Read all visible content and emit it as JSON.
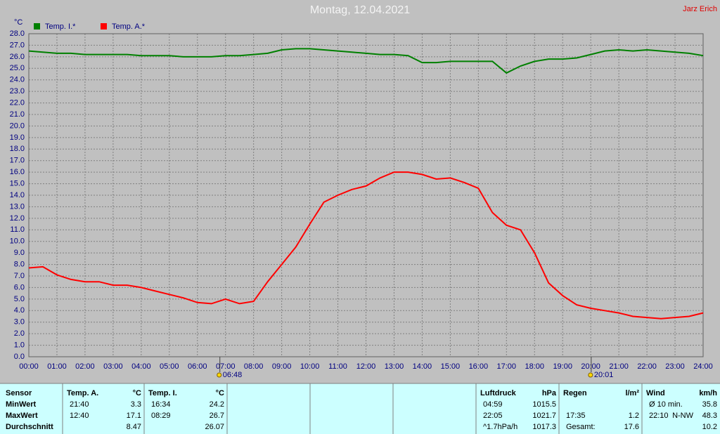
{
  "chart_data": {
    "type": "line",
    "title": "Montag, 12.04.2021",
    "author": "Jarz Erich",
    "y_label": "°C",
    "x": [
      0,
      0.5,
      1,
      1.5,
      2,
      2.5,
      3,
      3.5,
      4,
      4.5,
      5,
      5.5,
      6,
      6.5,
      7,
      7.5,
      8,
      8.5,
      9,
      9.5,
      10,
      10.5,
      11,
      11.5,
      12,
      12.5,
      13,
      13.5,
      14,
      14.5,
      15,
      15.5,
      16,
      16.5,
      17,
      17.5,
      18,
      18.5,
      19,
      19.5,
      20,
      20.5,
      21,
      21.5,
      22,
      22.5,
      23,
      23.5,
      24
    ],
    "series": [
      {
        "name": "Temp. I.*",
        "color": "#008000",
        "values": [
          26.5,
          26.4,
          26.3,
          26.3,
          26.2,
          26.2,
          26.2,
          26.2,
          26.1,
          26.1,
          26.1,
          26.0,
          26.0,
          26.0,
          26.1,
          26.1,
          26.2,
          26.3,
          26.6,
          26.7,
          26.7,
          26.6,
          26.5,
          26.4,
          26.3,
          26.2,
          26.2,
          26.1,
          25.5,
          25.5,
          25.6,
          25.6,
          25.6,
          25.6,
          24.6,
          25.2,
          25.6,
          25.8,
          25.8,
          25.9,
          26.2,
          26.5,
          26.6,
          26.5,
          26.6,
          26.5,
          26.4,
          26.3,
          26.1
        ]
      },
      {
        "name": "Temp. A.*",
        "color": "#ff0000",
        "values": [
          7.7,
          7.8,
          7.1,
          6.7,
          6.5,
          6.5,
          6.2,
          6.2,
          6.0,
          5.7,
          5.4,
          5.1,
          4.7,
          4.6,
          5.0,
          4.6,
          4.8,
          6.5,
          8.0,
          9.5,
          11.5,
          13.4,
          14.0,
          14.5,
          14.8,
          15.5,
          16.0,
          16.0,
          15.8,
          15.4,
          15.5,
          15.1,
          14.6,
          12.5,
          11.4,
          11.0,
          9.0,
          6.4,
          5.3,
          4.5,
          4.2,
          4.0,
          3.8,
          3.5,
          3.4,
          3.3,
          3.4,
          3.5,
          3.8
        ]
      }
    ],
    "xlim": [
      0,
      24
    ],
    "xticks": [
      {
        "value": 0,
        "label": "00:00"
      },
      {
        "value": 1,
        "label": "01:00"
      },
      {
        "value": 2,
        "label": "02:00"
      },
      {
        "value": 3,
        "label": "03:00"
      },
      {
        "value": 4,
        "label": "04:00"
      },
      {
        "value": 5,
        "label": "05:00"
      },
      {
        "value": 6,
        "label": "06:00"
      },
      {
        "value": 7,
        "label": "07:00"
      },
      {
        "value": 8,
        "label": "08:00"
      },
      {
        "value": 9,
        "label": "09:00"
      },
      {
        "value": 10,
        "label": "10:00"
      },
      {
        "value": 11,
        "label": "11:00"
      },
      {
        "value": 12,
        "label": "12:00"
      },
      {
        "value": 13,
        "label": "13:00"
      },
      {
        "value": 14,
        "label": "14:00"
      },
      {
        "value": 15,
        "label": "15:00"
      },
      {
        "value": 16,
        "label": "16:00"
      },
      {
        "value": 17,
        "label": "17:00"
      },
      {
        "value": 18,
        "label": "18:00"
      },
      {
        "value": 19,
        "label": "19:00"
      },
      {
        "value": 20,
        "label": "20:00"
      },
      {
        "value": 21,
        "label": "21:00"
      },
      {
        "value": 22,
        "label": "22:00"
      },
      {
        "value": 23,
        "label": "23:00"
      },
      {
        "value": 24,
        "label": "24:00"
      }
    ],
    "ylim": [
      0,
      28
    ],
    "yticks": [
      {
        "value": 0,
        "label": "0.0"
      },
      {
        "value": 1,
        "label": "1.0"
      },
      {
        "value": 2,
        "label": "2.0"
      },
      {
        "value": 3,
        "label": "3.0"
      },
      {
        "value": 4,
        "label": "4.0"
      },
      {
        "value": 5,
        "label": "5.0"
      },
      {
        "value": 6,
        "label": "6.0"
      },
      {
        "value": 7,
        "label": "7.0"
      },
      {
        "value": 8,
        "label": "8.0"
      },
      {
        "value": 9,
        "label": "9.0"
      },
      {
        "value": 10,
        "label": "10.0"
      },
      {
        "value": 11,
        "label": "11.0"
      },
      {
        "value": 12,
        "label": "12.0"
      },
      {
        "value": 13,
        "label": "13.0"
      },
      {
        "value": 14,
        "label": "14.0"
      },
      {
        "value": 15,
        "label": "15.0"
      },
      {
        "value": 16,
        "label": "16.0"
      },
      {
        "value": 17,
        "label": "17.0"
      },
      {
        "value": 18,
        "label": "18.0"
      },
      {
        "value": 19,
        "label": "19.0"
      },
      {
        "value": 20,
        "label": "20.0"
      },
      {
        "value": 21,
        "label": "21.0"
      },
      {
        "value": 22,
        "label": "22.0"
      },
      {
        "value": 23,
        "label": "23.0"
      },
      {
        "value": 24,
        "label": "24.0"
      },
      {
        "value": 25,
        "label": "25.0"
      },
      {
        "value": 26,
        "label": "26.0"
      },
      {
        "value": 27,
        "label": "27.0"
      },
      {
        "value": 28,
        "label": "28.0"
      }
    ],
    "grid": true,
    "annotations": [
      {
        "x": 6.8,
        "label": "06:48"
      },
      {
        "x": 20.0167,
        "label": "20:01"
      }
    ]
  },
  "table": {
    "row_labels": [
      "Sensor",
      "MinWert",
      "MaxWert",
      "Durchschnitt"
    ],
    "blocks": [
      {
        "title": "Temp. A.",
        "unit": "°C",
        "rows": [
          [
            "21:40",
            "3.3"
          ],
          [
            "12:40",
            "17.1"
          ],
          [
            "8.47"
          ]
        ]
      },
      {
        "title": "Temp. I.",
        "unit": "°C",
        "rows": [
          [
            "16:34",
            "24.2"
          ],
          [
            "08:29",
            "26.7"
          ],
          [
            "26.07"
          ]
        ]
      },
      {
        "title": "Luftdruck",
        "unit": "hPa",
        "rows": [
          [
            "04:59",
            "1015.5"
          ],
          [
            "22:05",
            "1021.7"
          ],
          [
            "^1.7hPa/h",
            "1017.3"
          ]
        ]
      },
      {
        "title": "Regen",
        "unit": "l/m²",
        "rows": [
          [],
          [
            "17:35",
            "1.2"
          ],
          [
            "Gesamt:",
            "17.6"
          ]
        ]
      },
      {
        "title": "Wind",
        "unit": "km/h",
        "rows": [
          [
            "Ø 10 min.",
            "35.8"
          ],
          [
            "22:10",
            "N-NW",
            "48.3"
          ],
          [
            "10.2"
          ]
        ]
      }
    ]
  }
}
